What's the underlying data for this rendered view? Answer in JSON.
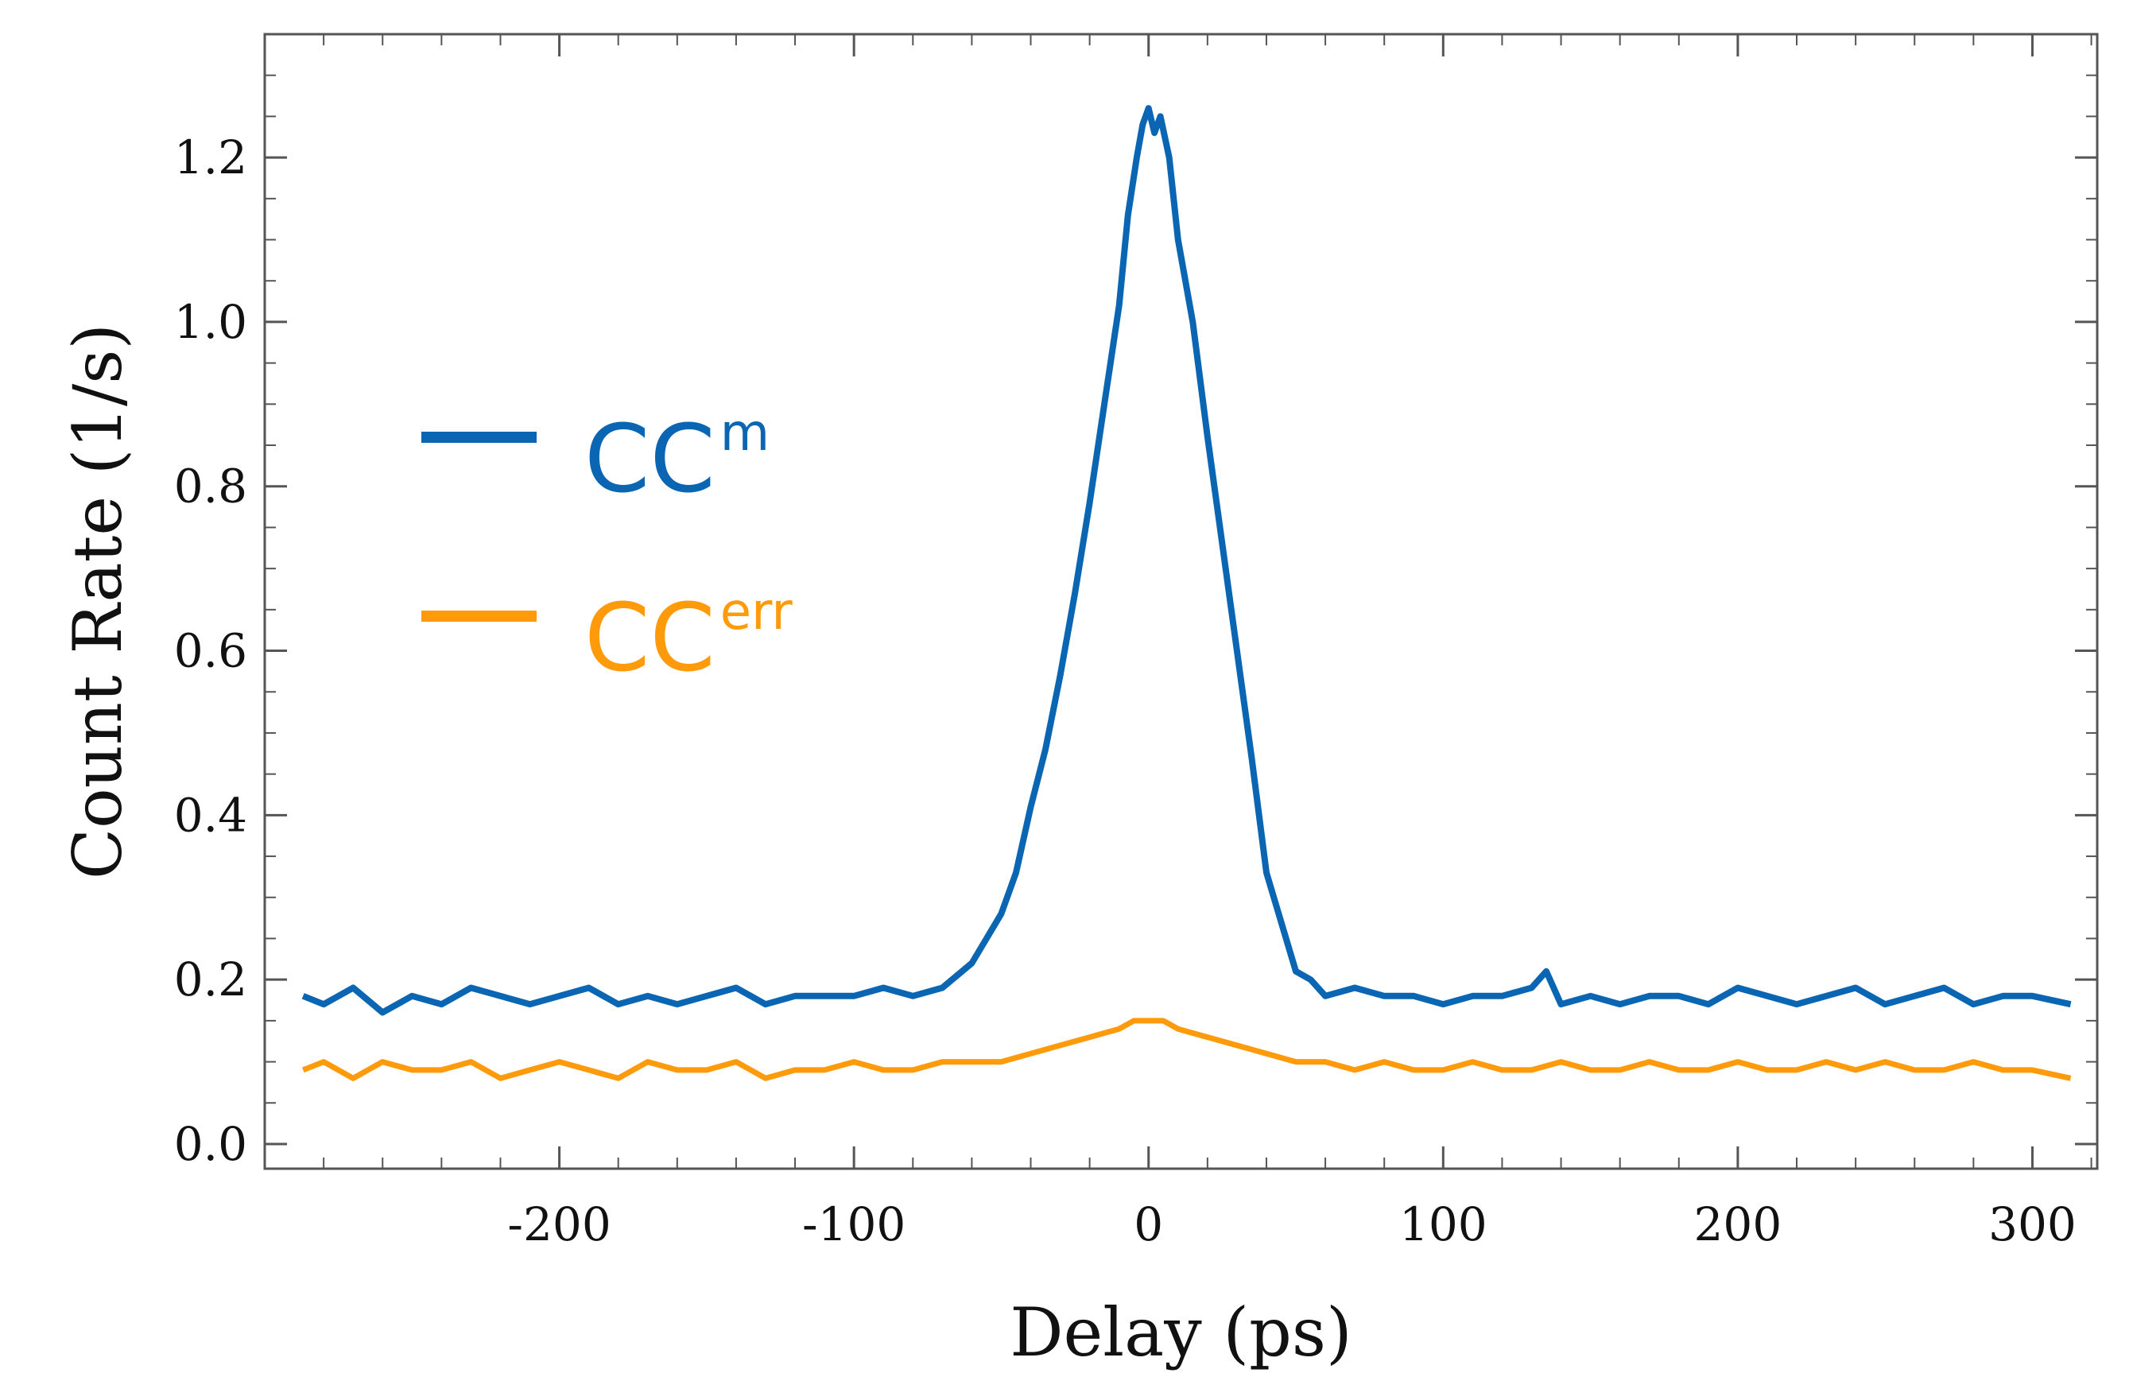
{
  "chart_data": {
    "type": "line",
    "xlabel": "Delay (ps)",
    "ylabel": "Count Rate (1/s)",
    "xlim": [
      -300,
      322
    ],
    "ylim": [
      -0.03,
      1.35
    ],
    "xticks": [
      -200,
      -100,
      0,
      100,
      200,
      300
    ],
    "xtick_labels": [
      "-200",
      "-100",
      "0",
      "100",
      "200",
      "300"
    ],
    "yticks": [
      0.0,
      0.2,
      0.4,
      0.6,
      0.8,
      1.0,
      1.2
    ],
    "ytick_labels": [
      "0.0",
      "0.2",
      "0.4",
      "0.6",
      "0.8",
      "1.0",
      "1.2"
    ],
    "grid": false,
    "legend_position": "center-left",
    "series": [
      {
        "legend_base": "CC",
        "legend_sup": "m",
        "color": "#0a66b3",
        "x": [
          -287,
          -280,
          -270,
          -260,
          -250,
          -240,
          -230,
          -220,
          -210,
          -200,
          -190,
          -180,
          -170,
          -160,
          -150,
          -140,
          -130,
          -120,
          -110,
          -100,
          -90,
          -80,
          -70,
          -60,
          -55,
          -50,
          -45,
          -40,
          -35,
          -30,
          -25,
          -20,
          -15,
          -10,
          -7,
          -4,
          -2,
          0,
          2,
          4,
          7,
          10,
          15,
          20,
          25,
          30,
          35,
          40,
          45,
          50,
          55,
          60,
          70,
          80,
          90,
          100,
          110,
          120,
          130,
          135,
          140,
          150,
          160,
          170,
          180,
          190,
          200,
          210,
          220,
          230,
          240,
          250,
          260,
          270,
          280,
          290,
          300,
          313
        ],
        "y": [
          0.18,
          0.17,
          0.19,
          0.16,
          0.18,
          0.17,
          0.19,
          0.18,
          0.17,
          0.18,
          0.19,
          0.17,
          0.18,
          0.17,
          0.18,
          0.19,
          0.17,
          0.18,
          0.18,
          0.18,
          0.19,
          0.18,
          0.19,
          0.22,
          0.25,
          0.28,
          0.33,
          0.41,
          0.48,
          0.57,
          0.67,
          0.78,
          0.9,
          1.02,
          1.13,
          1.2,
          1.24,
          1.26,
          1.23,
          1.25,
          1.2,
          1.1,
          1.0,
          0.86,
          0.73,
          0.6,
          0.47,
          0.33,
          0.27,
          0.21,
          0.2,
          0.18,
          0.19,
          0.18,
          0.18,
          0.17,
          0.18,
          0.18,
          0.19,
          0.21,
          0.17,
          0.18,
          0.17,
          0.18,
          0.18,
          0.17,
          0.19,
          0.18,
          0.17,
          0.18,
          0.19,
          0.17,
          0.18,
          0.19,
          0.17,
          0.18,
          0.18,
          0.17
        ]
      },
      {
        "legend_base": "CC",
        "legend_sup": "err",
        "color": "#ff9a0a",
        "x": [
          -287,
          -280,
          -270,
          -260,
          -250,
          -240,
          -230,
          -220,
          -210,
          -200,
          -190,
          -180,
          -170,
          -160,
          -150,
          -140,
          -130,
          -120,
          -110,
          -100,
          -90,
          -80,
          -70,
          -60,
          -50,
          -40,
          -30,
          -20,
          -10,
          -5,
          0,
          5,
          10,
          20,
          30,
          40,
          50,
          60,
          70,
          80,
          90,
          100,
          110,
          120,
          130,
          140,
          150,
          160,
          170,
          180,
          190,
          200,
          210,
          220,
          230,
          240,
          250,
          260,
          270,
          280,
          290,
          300,
          313
        ],
        "y": [
          0.09,
          0.1,
          0.08,
          0.1,
          0.09,
          0.09,
          0.1,
          0.08,
          0.09,
          0.1,
          0.09,
          0.08,
          0.1,
          0.09,
          0.09,
          0.1,
          0.08,
          0.09,
          0.09,
          0.1,
          0.09,
          0.09,
          0.1,
          0.1,
          0.1,
          0.11,
          0.12,
          0.13,
          0.14,
          0.15,
          0.15,
          0.15,
          0.14,
          0.13,
          0.12,
          0.11,
          0.1,
          0.1,
          0.09,
          0.1,
          0.09,
          0.09,
          0.1,
          0.09,
          0.09,
          0.1,
          0.09,
          0.09,
          0.1,
          0.09,
          0.09,
          0.1,
          0.09,
          0.09,
          0.1,
          0.09,
          0.1,
          0.09,
          0.09,
          0.1,
          0.09,
          0.09,
          0.08
        ]
      }
    ]
  }
}
